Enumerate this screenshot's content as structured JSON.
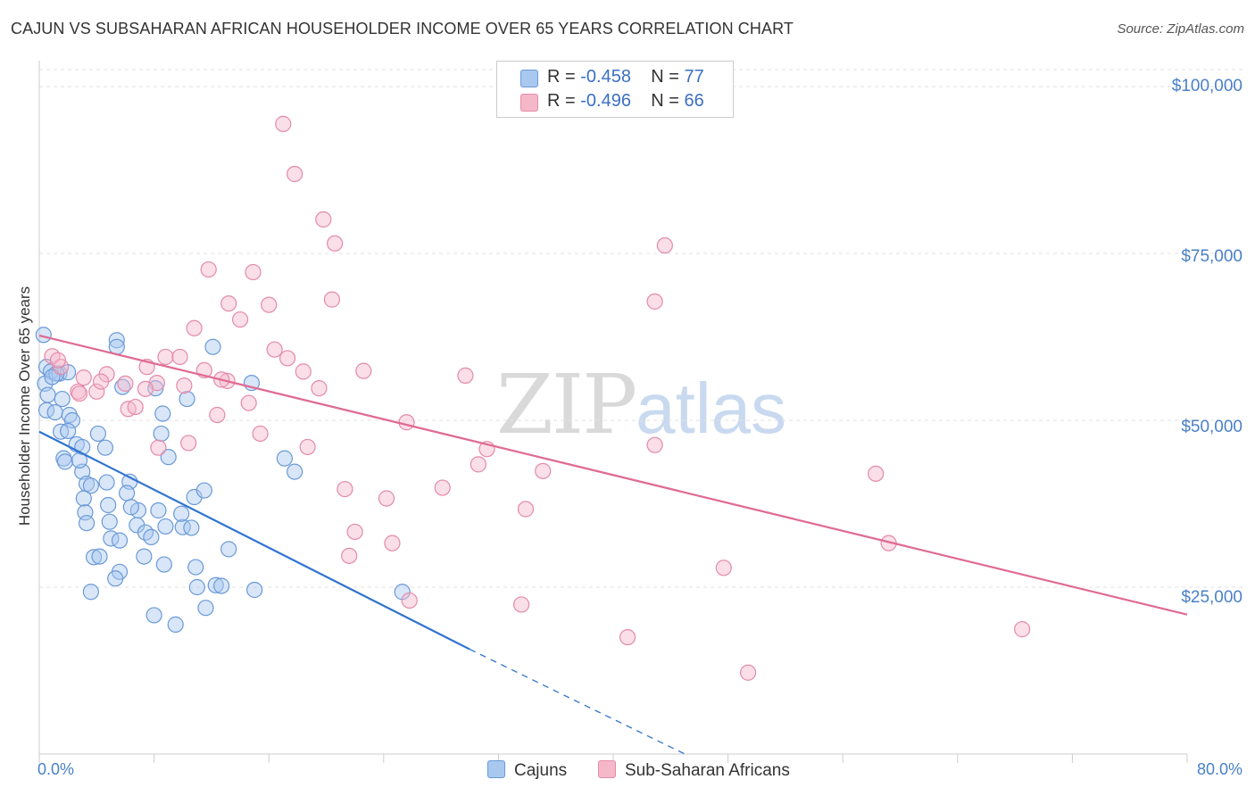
{
  "title": "CAJUN VS SUBSAHARAN AFRICAN HOUSEHOLDER INCOME OVER 65 YEARS CORRELATION CHART",
  "source": "Source: ZipAtlas.com",
  "watermark": {
    "zip": "ZIP",
    "atlas": "atlas"
  },
  "legend": {
    "rows": [
      {
        "r_label": "R = ",
        "r_value": "-0.458",
        "n_label": "N = ",
        "n_value": "77",
        "color": "#a8c8f0"
      },
      {
        "r_label": "R = ",
        "r_value": "-0.496",
        "n_label": "N = ",
        "n_value": "66",
        "color": "#f5b8cb"
      }
    ]
  },
  "bottom_legend": [
    {
      "label": "Cajuns",
      "color": "#a8c8f0"
    },
    {
      "label": "Sub-Saharan Africans",
      "color": "#f5b8cb"
    }
  ],
  "chart_data": {
    "type": "scatter",
    "xlabel": "",
    "ylabel": "Householder Income Over 65 years",
    "x_tick_labels": [
      "0.0%",
      "80.0%"
    ],
    "y_tick_labels": [
      "$100,000",
      "$75,000",
      "$50,000",
      "$25,000"
    ],
    "y_tick_values": [
      100000,
      75000,
      50000,
      25000
    ],
    "xlim": [
      0,
      80
    ],
    "ylim": [
      0,
      103000
    ],
    "grid": true,
    "series": [
      {
        "name": "Cajuns",
        "color": "#a8c8f0",
        "stroke": "#6a9ad8",
        "trend": {
          "x0": 0,
          "y0": 48300,
          "x1": 30,
          "y1": 15700,
          "x_dash_end": 45,
          "y_dash_end": 0,
          "color": "#2f74d0"
        },
        "points": [
          [
            0.3,
            62800
          ],
          [
            0.5,
            58000
          ],
          [
            0.8,
            57300
          ],
          [
            0.4,
            55500
          ],
          [
            1.4,
            57000
          ],
          [
            2.0,
            57200
          ],
          [
            0.6,
            53800
          ],
          [
            1.6,
            53200
          ],
          [
            0.5,
            51500
          ],
          [
            1.1,
            51200
          ],
          [
            2.1,
            50800
          ],
          [
            2.3,
            50000
          ],
          [
            1.5,
            48300
          ],
          [
            2.0,
            48400
          ],
          [
            4.1,
            48000
          ],
          [
            5.4,
            62000
          ],
          [
            5.4,
            61000
          ],
          [
            5.8,
            55000
          ],
          [
            8.1,
            54800
          ],
          [
            2.6,
            46400
          ],
          [
            3.0,
            46000
          ],
          [
            4.6,
            45900
          ],
          [
            1.7,
            44300
          ],
          [
            1.8,
            43800
          ],
          [
            3.0,
            42300
          ],
          [
            3.3,
            40500
          ],
          [
            4.7,
            40700
          ],
          [
            3.6,
            40200
          ],
          [
            6.3,
            40800
          ],
          [
            3.1,
            38300
          ],
          [
            6.1,
            39100
          ],
          [
            3.2,
            36200
          ],
          [
            4.8,
            37300
          ],
          [
            3.3,
            34600
          ],
          [
            4.9,
            34800
          ],
          [
            6.9,
            36500
          ],
          [
            8.3,
            36500
          ],
          [
            6.8,
            34300
          ],
          [
            8.8,
            34100
          ],
          [
            10.0,
            34000
          ],
          [
            10.6,
            33900
          ],
          [
            7.4,
            33200
          ],
          [
            5.0,
            32300
          ],
          [
            5.6,
            32000
          ],
          [
            3.8,
            29500
          ],
          [
            4.2,
            29600
          ],
          [
            7.3,
            29600
          ],
          [
            8.7,
            28400
          ],
          [
            10.9,
            28000
          ],
          [
            5.6,
            27300
          ],
          [
            5.3,
            26300
          ],
          [
            3.6,
            24300
          ],
          [
            11.0,
            25000
          ],
          [
            12.3,
            25300
          ],
          [
            12.7,
            25200
          ],
          [
            15.0,
            24600
          ],
          [
            14.8,
            55600
          ],
          [
            17.1,
            44300
          ],
          [
            17.8,
            42300
          ],
          [
            11.6,
            21900
          ],
          [
            8.0,
            20800
          ],
          [
            9.5,
            19400
          ],
          [
            25.3,
            24300
          ],
          [
            12.1,
            61000
          ],
          [
            10.3,
            53200
          ],
          [
            8.6,
            51000
          ],
          [
            9.0,
            44500
          ],
          [
            10.8,
            38500
          ],
          [
            11.5,
            39500
          ],
          [
            13.2,
            30700
          ],
          [
            8.5,
            48000
          ],
          [
            7.8,
            32500
          ],
          [
            2.8,
            44000
          ],
          [
            1.2,
            57000
          ],
          [
            0.9,
            56500
          ],
          [
            9.9,
            36000
          ],
          [
            6.4,
            37000
          ]
        ]
      },
      {
        "name": "Sub-Saharan Africans",
        "color": "#f5b8cb",
        "stroke": "#e48aa8",
        "trend": {
          "x0": 0,
          "y0": 62700,
          "x1": 80,
          "y1": 20900,
          "color": "#e06b94"
        },
        "points": [
          [
            17.0,
            94400
          ],
          [
            17.8,
            86900
          ],
          [
            19.8,
            80100
          ],
          [
            20.6,
            76500
          ],
          [
            43.6,
            76200
          ],
          [
            11.8,
            72600
          ],
          [
            14.9,
            72200
          ],
          [
            13.2,
            67500
          ],
          [
            16.0,
            67300
          ],
          [
            20.4,
            68100
          ],
          [
            42.9,
            67800
          ],
          [
            14.0,
            65100
          ],
          [
            10.8,
            63800
          ],
          [
            16.4,
            60600
          ],
          [
            8.8,
            59500
          ],
          [
            9.8,
            59500
          ],
          [
            17.3,
            59300
          ],
          [
            0.9,
            59600
          ],
          [
            1.5,
            58000
          ],
          [
            7.5,
            58000
          ],
          [
            11.5,
            57500
          ],
          [
            18.4,
            57300
          ],
          [
            22.6,
            57400
          ],
          [
            4.7,
            56900
          ],
          [
            3.1,
            56400
          ],
          [
            29.7,
            56700
          ],
          [
            13.1,
            55900
          ],
          [
            8.2,
            55600
          ],
          [
            10.1,
            55200
          ],
          [
            6.0,
            55500
          ],
          [
            4.0,
            54300
          ],
          [
            7.4,
            54700
          ],
          [
            19.5,
            54800
          ],
          [
            2.7,
            54300
          ],
          [
            2.8,
            54000
          ],
          [
            14.6,
            52600
          ],
          [
            6.2,
            51700
          ],
          [
            12.4,
            50800
          ],
          [
            25.6,
            49700
          ],
          [
            15.4,
            48000
          ],
          [
            10.4,
            46600
          ],
          [
            8.3,
            45900
          ],
          [
            18.7,
            46000
          ],
          [
            42.9,
            46300
          ],
          [
            31.2,
            45700
          ],
          [
            30.6,
            43400
          ],
          [
            35.1,
            42400
          ],
          [
            58.3,
            42000
          ],
          [
            21.3,
            39700
          ],
          [
            28.1,
            39900
          ],
          [
            24.2,
            38300
          ],
          [
            33.9,
            36700
          ],
          [
            22.0,
            33300
          ],
          [
            24.6,
            31600
          ],
          [
            59.2,
            31600
          ],
          [
            21.6,
            29700
          ],
          [
            47.7,
            27900
          ],
          [
            25.8,
            23000
          ],
          [
            33.6,
            22400
          ],
          [
            41.0,
            17500
          ],
          [
            68.5,
            18700
          ],
          [
            49.4,
            12200
          ],
          [
            1.3,
            59000
          ],
          [
            4.3,
            55800
          ],
          [
            12.7,
            56100
          ],
          [
            6.7,
            52000
          ]
        ]
      }
    ]
  }
}
